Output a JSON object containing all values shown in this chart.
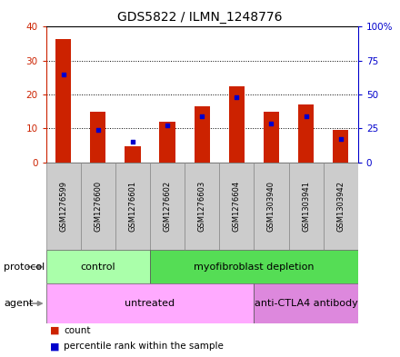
{
  "title": "GDS5822 / ILMN_1248776",
  "samples": [
    "GSM1276599",
    "GSM1276600",
    "GSM1276601",
    "GSM1276602",
    "GSM1276603",
    "GSM1276604",
    "GSM1303940",
    "GSM1303941",
    "GSM1303942"
  ],
  "counts": [
    36.5,
    15.0,
    4.8,
    12.0,
    16.5,
    22.5,
    15.0,
    17.0,
    9.5
  ],
  "percentile_ranks": [
    65,
    24,
    15,
    27,
    34,
    48,
    29,
    34,
    17
  ],
  "ylim_left": [
    0,
    40
  ],
  "ylim_right": [
    0,
    100
  ],
  "yticks_left": [
    0,
    10,
    20,
    30,
    40
  ],
  "yticks_right": [
    0,
    25,
    50,
    75,
    100
  ],
  "yticklabels_left": [
    "0",
    "10",
    "20",
    "30",
    "40"
  ],
  "yticklabels_right": [
    "0",
    "25",
    "50",
    "75",
    "100%"
  ],
  "bar_color": "#cc2200",
  "dot_color": "#0000cc",
  "protocol_groups": [
    {
      "label": "control",
      "start": 0,
      "end": 3,
      "color": "#aaffaa"
    },
    {
      "label": "myofibroblast depletion",
      "start": 3,
      "end": 9,
      "color": "#55dd55"
    }
  ],
  "agent_groups": [
    {
      "label": "untreated",
      "start": 0,
      "end": 6,
      "color": "#ffaaff"
    },
    {
      "label": "anti-CTLA4 antibody",
      "start": 6,
      "end": 9,
      "color": "#dd88dd"
    }
  ],
  "legend_items": [
    {
      "label": "count",
      "color": "#cc2200"
    },
    {
      "label": "percentile rank within the sample",
      "color": "#0000cc"
    }
  ],
  "bg_color": "#cccccc",
  "plot_bg": "#ffffff",
  "bar_width": 0.45
}
